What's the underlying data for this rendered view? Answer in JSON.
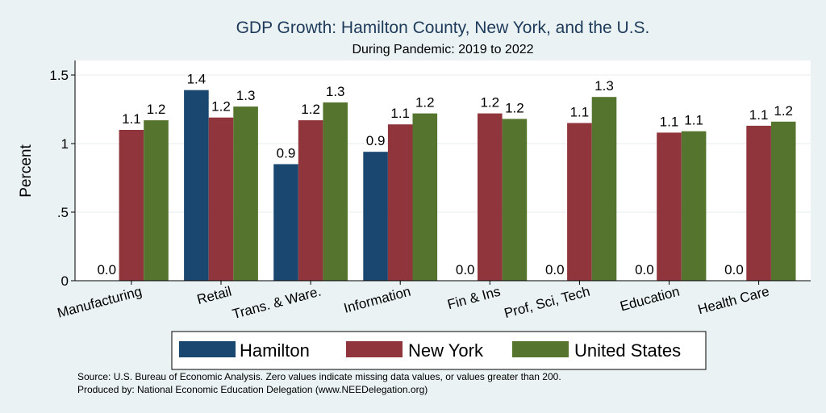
{
  "chart_data": {
    "type": "bar",
    "title": "GDP Growth: Hamilton County, New York, and the U.S.",
    "subtitle": "During Pandemic: 2019 to 2022",
    "ylabel": "Percent",
    "xlabel": "",
    "ylim": [
      0,
      1.6
    ],
    "yticks": [
      {
        "value": 0,
        "label": "0"
      },
      {
        "value": 0.5,
        "label": ".5"
      },
      {
        "value": 1,
        "label": "1"
      },
      {
        "value": 1.5,
        "label": "1.5"
      }
    ],
    "grid": true,
    "legend_position": "bottom",
    "categories": [
      "Manufacturing",
      "Retail",
      "Trans. & Ware.",
      "Information",
      "Fin & Ins",
      "Prof, Sci, Tech",
      "Education",
      "Health Care"
    ],
    "series": [
      {
        "name": "Hamilton",
        "color": "#1a476f",
        "values": [
          0.0,
          1.39,
          0.85,
          0.94,
          0.0,
          0.0,
          0.0,
          0.0
        ],
        "labels": [
          "0.0",
          "1.4",
          "0.9",
          "0.9",
          "0.0",
          "0.0",
          "0.0",
          "0.0"
        ]
      },
      {
        "name": "New York",
        "color": "#90353b",
        "values": [
          1.1,
          1.19,
          1.17,
          1.14,
          1.22,
          1.15,
          1.08,
          1.13
        ],
        "labels": [
          "1.1",
          "1.2",
          "1.2",
          "1.1",
          "1.2",
          "1.1",
          "1.1",
          "1.1"
        ]
      },
      {
        "name": "United States",
        "color": "#55752f",
        "values": [
          1.17,
          1.27,
          1.3,
          1.22,
          1.18,
          1.34,
          1.09,
          1.16
        ],
        "labels": [
          "1.2",
          "1.3",
          "1.3",
          "1.2",
          "1.2",
          "1.3",
          "1.1",
          "1.2"
        ]
      }
    ],
    "notes": [
      "Source: U.S. Bureau of Economic Analysis. Zero values indicate missing data values, or values greater than 200.",
      "Produced by: National Economic Education Delegation (www.NEEDelegation.org)"
    ]
  }
}
